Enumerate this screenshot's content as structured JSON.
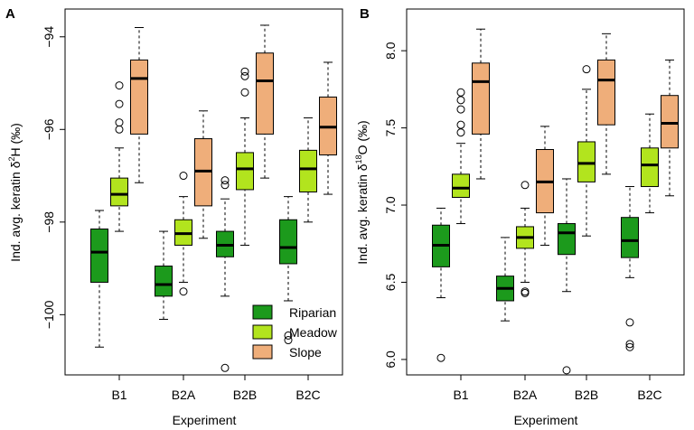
{
  "colors": {
    "riparian": "#1c9a1c",
    "meadow": "#b2e41e",
    "slope": "#efae7a",
    "axis": "#000000",
    "outline": "#000000"
  },
  "legend": {
    "entries": [
      "Riparian",
      "Meadow",
      "Slope"
    ]
  },
  "chart_data": [
    {
      "type": "boxplot",
      "panel_label": "A",
      "ylabel_prefix": "Ind. avg. keratin δ",
      "ylabel_sup": "2",
      "ylabel_suffix": "H (‰)",
      "xlabel": "Experiment",
      "categories": [
        "B1",
        "B2A",
        "B2B",
        "B2C"
      ],
      "series_names": [
        "Riparian",
        "Meadow",
        "Slope"
      ],
      "ylim": [
        -101.3,
        -93.4
      ],
      "yticks": [
        -100,
        -98,
        -96,
        -94
      ],
      "yticklabels": [
        "−100",
        "−98",
        "−96",
        "−94"
      ],
      "legend_position": "bottom-right",
      "boxes": [
        {
          "category": "B1",
          "series": "Riparian",
          "whisker_low": -100.7,
          "q1": -99.3,
          "median": -98.65,
          "q3": -98.15,
          "whisker_high": -97.75,
          "outliers": []
        },
        {
          "category": "B1",
          "series": "Meadow",
          "whisker_low": -98.2,
          "q1": -97.65,
          "median": -97.4,
          "q3": -97.05,
          "whisker_high": -96.4,
          "outliers": [
            -96.0,
            -95.85,
            -95.45,
            -95.05
          ]
        },
        {
          "category": "B1",
          "series": "Slope",
          "whisker_low": -97.15,
          "q1": -96.1,
          "median": -94.9,
          "q3": -94.5,
          "whisker_high": -93.8,
          "outliers": []
        },
        {
          "category": "B2A",
          "series": "Riparian",
          "whisker_low": -100.1,
          "q1": -99.6,
          "median": -99.35,
          "q3": -98.95,
          "whisker_high": -98.2,
          "outliers": []
        },
        {
          "category": "B2A",
          "series": "Meadow",
          "whisker_low": -99.3,
          "q1": -98.5,
          "median": -98.25,
          "q3": -97.95,
          "whisker_high": -97.45,
          "outliers": [
            -99.5,
            -97.0
          ]
        },
        {
          "category": "B2A",
          "series": "Slope",
          "whisker_low": -98.35,
          "q1": -97.65,
          "median": -96.9,
          "q3": -96.2,
          "whisker_high": -95.6,
          "outliers": []
        },
        {
          "category": "B2B",
          "series": "Riparian",
          "whisker_low": -99.6,
          "q1": -98.75,
          "median": -98.5,
          "q3": -98.2,
          "whisker_high": -97.5,
          "outliers": [
            -101.15,
            -97.2,
            -97.1
          ]
        },
        {
          "category": "B2B",
          "series": "Meadow",
          "whisker_low": -98.5,
          "q1": -97.3,
          "median": -96.85,
          "q3": -96.5,
          "whisker_high": -95.75,
          "outliers": [
            -95.2,
            -94.85,
            -94.75
          ]
        },
        {
          "category": "B2B",
          "series": "Slope",
          "whisker_low": -97.05,
          "q1": -96.1,
          "median": -94.95,
          "q3": -94.35,
          "whisker_high": -93.75,
          "outliers": []
        },
        {
          "category": "B2C",
          "series": "Riparian",
          "whisker_low": -99.7,
          "q1": -98.9,
          "median": -98.55,
          "q3": -97.95,
          "whisker_high": -97.45,
          "outliers": [
            -100.45,
            -100.55
          ]
        },
        {
          "category": "B2C",
          "series": "Meadow",
          "whisker_low": -98.0,
          "q1": -97.35,
          "median": -96.85,
          "q3": -96.45,
          "whisker_high": -95.75,
          "outliers": []
        },
        {
          "category": "B2C",
          "series": "Slope",
          "whisker_low": -97.4,
          "q1": -96.55,
          "median": -95.95,
          "q3": -95.3,
          "whisker_high": -94.55,
          "outliers": []
        }
      ]
    },
    {
      "type": "boxplot",
      "panel_label": "B",
      "ylabel_prefix": "Ind. avg. keratin δ",
      "ylabel_sup": "18",
      "ylabel_suffix": "O (‰)",
      "xlabel": "Experiment",
      "categories": [
        "B1",
        "B2A",
        "B2B",
        "B2C"
      ],
      "series_names": [
        "Riparian",
        "Meadow",
        "Slope"
      ],
      "ylim": [
        5.9,
        8.27
      ],
      "yticks": [
        6.0,
        6.5,
        7.0,
        7.5,
        8.0
      ],
      "yticklabels": [
        "6.0",
        "6.5",
        "7.0",
        "7.5",
        "8.0"
      ],
      "legend_position": "none",
      "boxes": [
        {
          "category": "B1",
          "series": "Riparian",
          "whisker_low": 6.4,
          "q1": 6.6,
          "median": 6.74,
          "q3": 6.87,
          "whisker_high": 6.98,
          "outliers": [
            6.01
          ]
        },
        {
          "category": "B1",
          "series": "Meadow",
          "whisker_low": 6.88,
          "q1": 7.05,
          "median": 7.11,
          "q3": 7.2,
          "whisker_high": 7.4,
          "outliers": [
            7.47,
            7.52,
            7.62,
            7.68,
            7.73
          ]
        },
        {
          "category": "B1",
          "series": "Slope",
          "whisker_low": 7.17,
          "q1": 7.46,
          "median": 7.8,
          "q3": 7.92,
          "whisker_high": 8.14,
          "outliers": []
        },
        {
          "category": "B2A",
          "series": "Riparian",
          "whisker_low": 6.25,
          "q1": 6.38,
          "median": 6.46,
          "q3": 6.54,
          "whisker_high": 6.79,
          "outliers": []
        },
        {
          "category": "B2A",
          "series": "Meadow",
          "whisker_low": 6.5,
          "q1": 6.72,
          "median": 6.79,
          "q3": 6.86,
          "whisker_high": 6.98,
          "outliers": [
            6.43,
            6.44,
            7.13
          ]
        },
        {
          "category": "B2A",
          "series": "Slope",
          "whisker_low": 6.74,
          "q1": 6.95,
          "median": 7.15,
          "q3": 7.36,
          "whisker_high": 7.51,
          "outliers": []
        },
        {
          "category": "B2B",
          "series": "Riparian",
          "whisker_low": 6.44,
          "q1": 6.68,
          "median": 6.82,
          "q3": 6.88,
          "whisker_high": 7.17,
          "outliers": [
            5.93
          ]
        },
        {
          "category": "B2B",
          "series": "Meadow",
          "whisker_low": 6.8,
          "q1": 7.15,
          "median": 7.27,
          "q3": 7.41,
          "whisker_high": 7.75,
          "outliers": [
            7.88
          ]
        },
        {
          "category": "B2B",
          "series": "Slope",
          "whisker_low": 7.2,
          "q1": 7.52,
          "median": 7.81,
          "q3": 7.94,
          "whisker_high": 8.11,
          "outliers": []
        },
        {
          "category": "B2C",
          "series": "Riparian",
          "whisker_low": 6.53,
          "q1": 6.66,
          "median": 6.77,
          "q3": 6.92,
          "whisker_high": 7.12,
          "outliers": [
            6.24,
            6.1,
            6.08
          ]
        },
        {
          "category": "B2C",
          "series": "Meadow",
          "whisker_low": 6.95,
          "q1": 7.12,
          "median": 7.26,
          "q3": 7.37,
          "whisker_high": 7.59,
          "outliers": []
        },
        {
          "category": "B2C",
          "series": "Slope",
          "whisker_low": 7.06,
          "q1": 7.37,
          "median": 7.53,
          "q3": 7.71,
          "whisker_high": 7.94,
          "outliers": []
        }
      ]
    }
  ]
}
